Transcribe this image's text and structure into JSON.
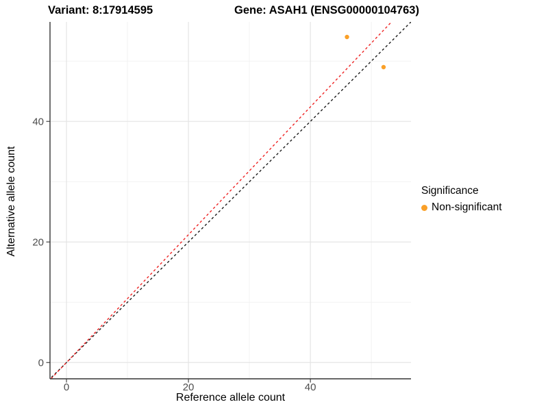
{
  "chart_data": {
    "type": "scatter",
    "title_left": "Variant: 8:17914595",
    "title_right": "Gene: ASAH1 (ENSG00000104763)",
    "xlabel": "Reference allele count",
    "ylabel": "Alternative allele count",
    "xlim": [
      -2.7,
      56.5
    ],
    "ylim": [
      -2.7,
      56.5
    ],
    "x_ticks_major": [
      0,
      20,
      40
    ],
    "x_ticks_minor": [
      10,
      30,
      50
    ],
    "y_ticks_major": [
      0,
      20,
      40
    ],
    "y_ticks_minor": [
      10,
      30,
      50
    ],
    "grid": true,
    "points": [
      {
        "x": 46,
        "y": 54,
        "series": "Non-significant"
      },
      {
        "x": 52,
        "y": 49,
        "series": "Non-significant"
      }
    ],
    "lines": [
      {
        "name": "identity-line",
        "slope": 1.0,
        "intercept": 0,
        "color": "#1a1a1a",
        "dash": true
      },
      {
        "name": "allelic-ratio-line",
        "slope": 1.06,
        "intercept": 0,
        "color": "#ee2222",
        "dash": true
      }
    ],
    "legend": {
      "title": "Significance",
      "position": "right",
      "items": [
        {
          "label": "Non-significant",
          "color": "#faa028"
        }
      ]
    },
    "colors": {
      "point": "#faa028",
      "grid_major": "#e4e4e4",
      "grid_minor": "#f2f2f2",
      "axis_line": "#333333",
      "tick_label": "#4d4d4d"
    }
  }
}
